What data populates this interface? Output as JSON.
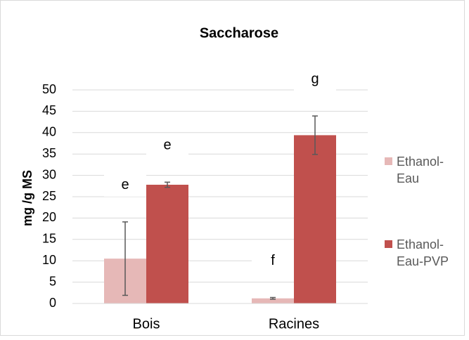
{
  "chart_data": {
    "type": "bar",
    "title": "Saccharose",
    "y_label": "mg /g MS",
    "categories": [
      "Bois",
      "Racines"
    ],
    "series": [
      {
        "name": "Ethanol-Eau",
        "color": "#e6b8b7",
        "values": [
          10.5,
          1.2
        ],
        "errors": [
          8.6,
          0.2
        ]
      },
      {
        "name": "Ethanol-Eau-PVP",
        "color": "#c0504d",
        "values": [
          27.8,
          39.4
        ],
        "errors": [
          0.6,
          4.5
        ]
      }
    ],
    "annotations": [
      {
        "text": "e",
        "category": 0,
        "series": 0
      },
      {
        "text": "e",
        "category": 0,
        "series": 1
      },
      {
        "text": "f",
        "category": 1,
        "series": 0
      },
      {
        "text": "g",
        "category": 1,
        "series": 1
      }
    ],
    "ylim": [
      0,
      50
    ],
    "yticks": [
      0,
      5,
      10,
      15,
      20,
      25,
      30,
      35,
      40,
      45,
      50
    ],
    "grid": true,
    "legend": "right"
  }
}
